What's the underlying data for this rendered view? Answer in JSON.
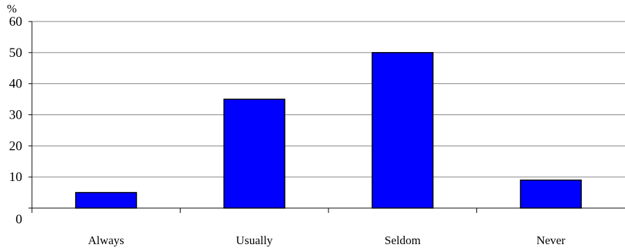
{
  "chart_data": {
    "type": "bar",
    "y_unit": "%",
    "categories": [
      "Always",
      "Usually",
      "Seldom",
      "Never"
    ],
    "values": [
      5,
      35,
      50,
      9
    ],
    "ylim": [
      0,
      60
    ],
    "yticks": [
      "0",
      "10",
      "20",
      "30",
      "40",
      "50",
      "60"
    ],
    "grid": true,
    "legend": "none",
    "bar_color": "#0000ff",
    "bar_edge_color": "#000000",
    "grid_color": "#808080"
  }
}
